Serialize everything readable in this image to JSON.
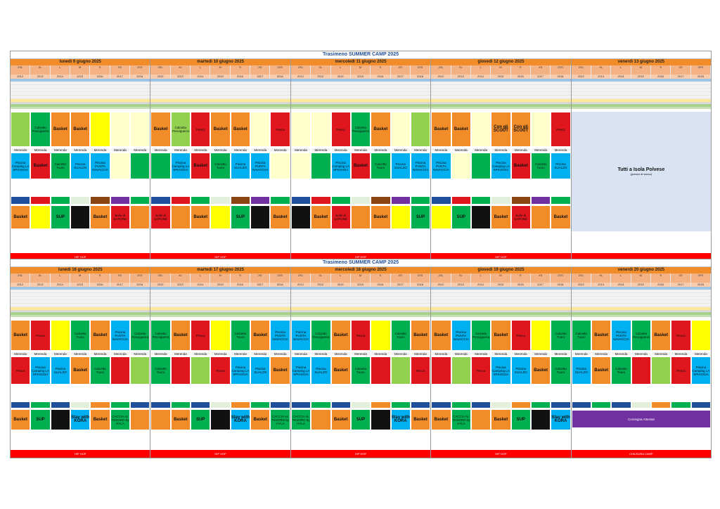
{
  "weeks": [
    {
      "title": "Trasimeno SUMMER CAMP 2025",
      "days": [
        {
          "label": "lunedì 9 giugno 2025",
          "cols": [
            "2XL",
            "XL",
            "L",
            "M",
            "S",
            "XS",
            "2XS"
          ],
          "years": [
            "2012",
            "2013",
            "2014",
            "2015",
            "2016",
            "2017",
            "2018"
          ]
        },
        {
          "label": "martedì 10 giugno 2025",
          "cols": [
            "2XL",
            "XL",
            "L",
            "M",
            "S",
            "XS",
            "2XS"
          ],
          "years": [
            "2012",
            "2013",
            "2014",
            "2015",
            "2016",
            "2017",
            "2018"
          ]
        },
        {
          "label": "mercoledì 11 giugno 2025",
          "cols": [
            "2XL",
            "XL",
            "L",
            "M",
            "S",
            "XS",
            "2XS"
          ],
          "years": [
            "2012",
            "2013",
            "2014",
            "2015",
            "2016",
            "2017",
            "2018"
          ]
        },
        {
          "label": "giovedì 12 giugno 2025",
          "cols": [
            "2XL",
            "XL",
            "L",
            "M",
            "S",
            "XS",
            "2XS"
          ],
          "years": [
            "2012",
            "2013",
            "2014",
            "2015",
            "2016",
            "2017",
            "2018"
          ]
        },
        {
          "label": "venerdì 13 giugno 2025",
          "cols": [
            "2XL",
            "XL",
            "L",
            "M",
            "S",
            "XS",
            "2XS"
          ],
          "years": [
            "2012",
            "2013",
            "2014",
            "2015",
            "2016",
            "2017",
            "2018"
          ]
        }
      ],
      "activities": {
        "basket": "Basket",
        "pesca": "Pesca",
        "calcetto": "Calcetto Pesciguerra",
        "calcetto_t": "Calcetto Tuoro",
        "merenda": "Merenda",
        "piscina_sualzo": "Piscina SUALZO",
        "piscina_punta": "Piscina PUNTA NAVACCIA",
        "piscina_camping": "Piscina Camping LA SPIAGGIA",
        "sup": "SUP",
        "hiphop": "HIP HOP",
        "scout": "Con gli SCOUT",
        "bolle": "Bolle di SAPONE",
        "caccia": "CACCIA AL TESORO by HYLA",
        "stay": "Stay with KORA",
        "isola": "Tutti a Isola Polvese",
        "isola_sub": "(pranzo al sacco)"
      }
    },
    {
      "title": "Trasimeno SUMMER CAMP 2025",
      "days": [
        {
          "label": "lunedì 16 giugno 2025",
          "cols": [
            "2XL",
            "XL",
            "L",
            "M",
            "S",
            "XS",
            "2XS"
          ],
          "years": [
            "2012",
            "2013",
            "2014",
            "2015",
            "2016",
            "2017",
            "2018"
          ]
        },
        {
          "label": "martedì 17 giugno 2025",
          "cols": [
            "2XL",
            "XL",
            "L",
            "M",
            "S",
            "XS",
            "2XS"
          ],
          "years": [
            "2012",
            "2013",
            "2014",
            "2015",
            "2016",
            "2017",
            "2018"
          ]
        },
        {
          "label": "mercoledì 18 giugno 2025",
          "cols": [
            "2XL",
            "XL",
            "L",
            "M",
            "S",
            "XS",
            "2XS"
          ],
          "years": [
            "2012",
            "2013",
            "2014",
            "2015",
            "2016",
            "2017",
            "2018"
          ]
        },
        {
          "label": "giovedì 19 giugno 2025",
          "cols": [
            "2XL",
            "XL",
            "L",
            "M",
            "S",
            "XS",
            "2XS"
          ],
          "years": [
            "2012",
            "2013",
            "2014",
            "2015",
            "2016",
            "2017",
            "2018"
          ]
        },
        {
          "label": "venerdì 20 giugno 2025",
          "cols": [
            "2XL",
            "XL",
            "L",
            "M",
            "S",
            "XS",
            "2XS"
          ],
          "years": [
            "2012",
            "2013",
            "2014",
            "2015",
            "2016",
            "2017",
            "2018"
          ]
        }
      ],
      "activities": {
        "consegna": "Consegna Attestati",
        "chiusura": "CHIUSURA CAMP"
      }
    }
  ],
  "colors": {
    "orange": "#f28c28",
    "red": "#e0161e",
    "green": "#00b050",
    "lgreen": "#92d050",
    "blue": "#00b0f0",
    "darkblue": "#1f4e9a",
    "yellow": "#ffff00",
    "brown": "#8b4513",
    "purple": "#7030a0",
    "black": "#111111",
    "grey": "#a6a6a6"
  }
}
